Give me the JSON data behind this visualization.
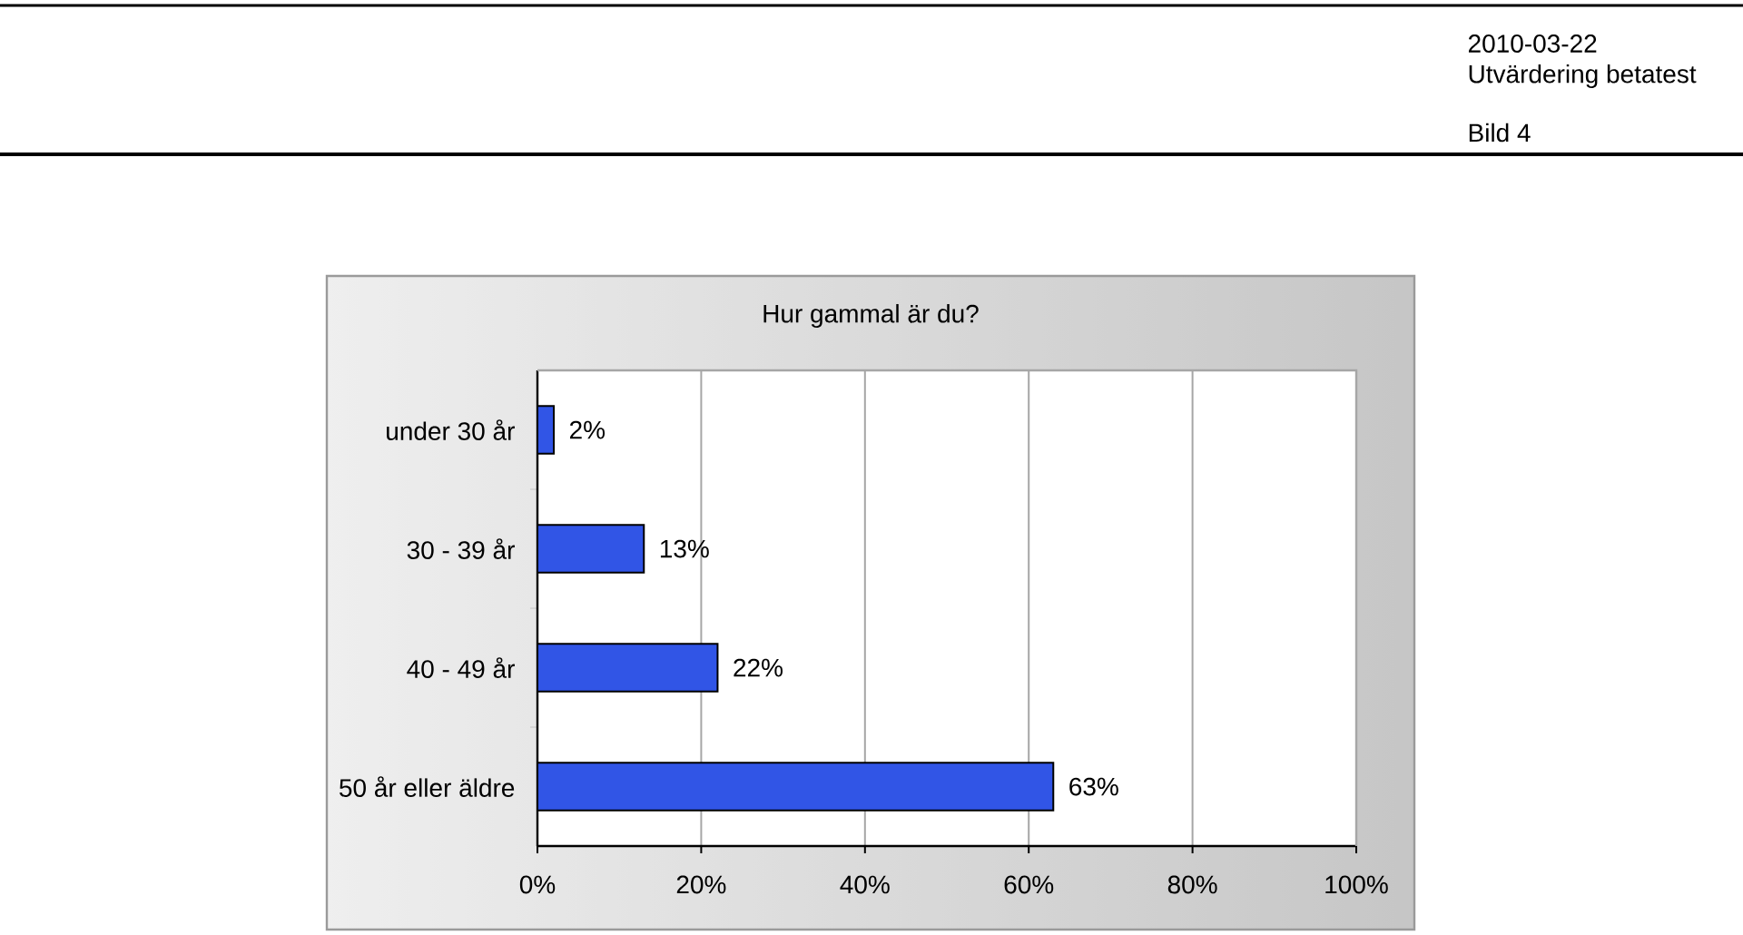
{
  "chart_data": {
    "type": "bar",
    "orientation": "horizontal",
    "title": "Hur gammal är du?",
    "categories": [
      "under 30 år",
      "30 - 39 år",
      "40 - 49 år",
      "50 år eller äldre"
    ],
    "values": [
      2,
      13,
      22,
      63
    ],
    "value_labels": [
      "2%",
      "13%",
      "22%",
      "63%"
    ],
    "color": "#3155e6",
    "xlim": [
      0,
      100
    ],
    "xticks": [
      {
        "value": 0,
        "label": "0%"
      },
      {
        "value": 20,
        "label": "20%"
      },
      {
        "value": 40,
        "label": "40%"
      },
      {
        "value": 60,
        "label": "60%"
      },
      {
        "value": 80,
        "label": "80%"
      },
      {
        "value": 100,
        "label": "100%"
      }
    ],
    "grid": "x",
    "annotations": [
      "2010-03-22",
      "Utvärdering betatest",
      "Bild 4"
    ]
  }
}
